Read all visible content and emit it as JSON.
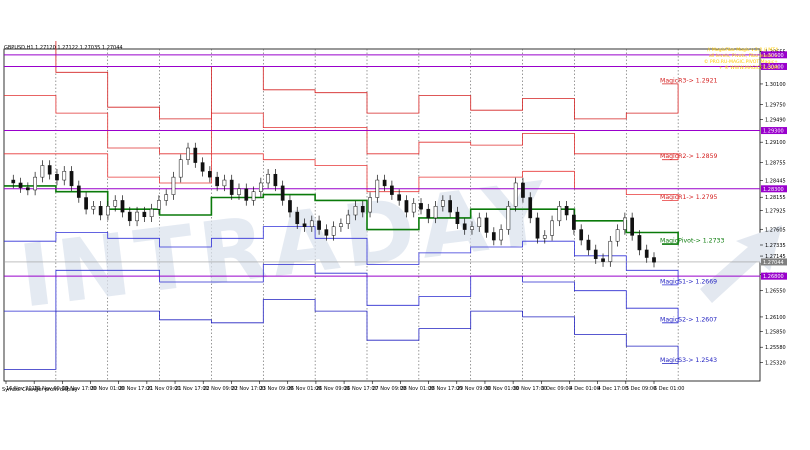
{
  "chart": {
    "symbol_line": "GBPUSD,H1  1.27120 1.27122 1.27035 1.27044",
    "status_text": "Symbol Changer profit display",
    "watermark_text": "INTRADAY",
    "info_lines": [
      "// MagicFibo Magic v.2.0 // MT4",
      "all levels, Pivots, Fibo levels +",
      "© PRO.RU-MAGIC.PIVOT Magic+",
      "+ ® WWW.MAGICFX.COM"
    ]
  },
  "pivot_labels": {
    "r3": "MagicR3-> 1.2921",
    "r2": "MagicR2-> 1.2859",
    "r1": "MagicR1-> 1.2795",
    "pivot": "MagicPivot-> 1.2733",
    "s1": "MagicS1-> 1.2669",
    "s2": "MagicS2-> 1.2607",
    "s3": "MagicS3-> 1.2543"
  },
  "chart_data": {
    "type": "line",
    "instrument": "GBPUSD",
    "timeframe": "H1",
    "ylim": [
      1.25,
      1.307
    ],
    "y_ticks": [
      "1.30655",
      "1.30379",
      "1.30100",
      "1.29750",
      "1.29490",
      "1.29100",
      "1.28755",
      "1.28445",
      "1.28155",
      "1.27925",
      "1.27605",
      "1.27335",
      "1.27145",
      "1.26825",
      "1.26550",
      "1.26100",
      "1.25850",
      "1.25580",
      "1.25320"
    ],
    "x_ticks": [
      "16 Nov 2018",
      "19 Nov 09:00",
      "19 Nov 17:00",
      "20 Nov 01:00",
      "20 Nov 17:00",
      "21 Nov 09:00",
      "21 Nov 17:00",
      "22 Nov 09:00",
      "22 Nov 17:00",
      "23 Nov 09:00",
      "26 Nov 01:00",
      "26 Nov 09:00",
      "26 Nov 17:00",
      "27 Nov 09:00",
      "28 Nov 01:00",
      "28 Nov 17:00",
      "29 Nov 09:00",
      "30 Nov 01:00",
      "30 Nov 17:00",
      "3 Dec 09:00",
      "4 Dec 01:00",
      "4 Dec 17:00",
      "5 Dec 09:00",
      "6 Dec 01:00"
    ],
    "price_tags": [
      {
        "value": "1.30600",
        "color": "#9900cc"
      },
      {
        "value": "1.30400",
        "color": "#9900cc"
      },
      {
        "value": "1.29300",
        "color": "#9900cc"
      },
      {
        "value": "1.28300",
        "color": "#9900cc"
      },
      {
        "value": "1.27044",
        "color": "#7f7f7f"
      },
      {
        "value": "1.26800",
        "color": "#9900cc"
      }
    ],
    "purple_levels": [
      1.306,
      1.304,
      1.293,
      1.283,
      1.268
    ],
    "current_price": 1.27044,
    "days": [
      {
        "label": "16 Nov",
        "r3": 1.309,
        "r2": 1.299,
        "r1": 1.289,
        "p": 1.2835,
        "s1": 1.274,
        "s2": 1.262,
        "s3": 1.252
      },
      {
        "label": "19 Nov",
        "r3": 1.303,
        "r2": 1.296,
        "r1": 1.289,
        "p": 1.2825,
        "s1": 1.2755,
        "s2": 1.269,
        "s3": 1.262
      },
      {
        "label": "20 Nov",
        "r3": 1.297,
        "r2": 1.29,
        "r1": 1.285,
        "p": 1.2795,
        "s1": 1.2745,
        "s2": 1.269,
        "s3": 1.262
      },
      {
        "label": "21 Nov",
        "r3": 1.295,
        "r2": 1.289,
        "r1": 1.284,
        "p": 1.2785,
        "s1": 1.273,
        "s2": 1.267,
        "s3": 1.2605
      },
      {
        "label": "22 Nov",
        "r3": 1.304,
        "r2": 1.296,
        "r1": 1.289,
        "p": 1.2815,
        "s1": 1.2745,
        "s2": 1.267,
        "s3": 1.26
      },
      {
        "label": "23 Nov",
        "r3": 1.3,
        "r2": 1.2935,
        "r1": 1.288,
        "p": 1.282,
        "s1": 1.2765,
        "s2": 1.27,
        "s3": 1.264
      },
      {
        "label": "26 Nov",
        "r3": 1.2995,
        "r2": 1.2935,
        "r1": 1.287,
        "p": 1.281,
        "s1": 1.2745,
        "s2": 1.2685,
        "s3": 1.262
      },
      {
        "label": "27 Nov",
        "r3": 1.296,
        "r2": 1.289,
        "r1": 1.2825,
        "p": 1.276,
        "s1": 1.27,
        "s2": 1.263,
        "s3": 1.257
      },
      {
        "label": "28 Nov",
        "r3": 1.299,
        "r2": 1.291,
        "r1": 1.285,
        "p": 1.278,
        "s1": 1.272,
        "s2": 1.2645,
        "s3": 1.259
      },
      {
        "label": "29 Nov",
        "r3": 1.2965,
        "r2": 1.2905,
        "r1": 1.285,
        "p": 1.2795,
        "s1": 1.273,
        "s2": 1.268,
        "s3": 1.262
      },
      {
        "label": "30 Nov",
        "r3": 1.2985,
        "r2": 1.2925,
        "r1": 1.286,
        "p": 1.2795,
        "s1": 1.274,
        "s2": 1.267,
        "s3": 1.261
      },
      {
        "label": "3 Dec",
        "r3": 1.295,
        "r2": 1.289,
        "r1": 1.283,
        "p": 1.2775,
        "s1": 1.2715,
        "s2": 1.2655,
        "s3": 1.258
      },
      {
        "label": "4 Dec",
        "r3": 1.296,
        "r2": 1.289,
        "r1": 1.282,
        "p": 1.2755,
        "s1": 1.269,
        "s2": 1.2625,
        "s3": 1.256
      },
      {
        "label": "5 Dec",
        "r3": 1.301,
        "r2": 1.288,
        "r1": 1.281,
        "p": 1.2735,
        "s1": 1.2665,
        "s2": 1.26,
        "s3": 1.253
      }
    ],
    "price_path": [
      1.2845,
      1.284,
      1.2832,
      1.2828,
      1.285,
      1.287,
      1.2855,
      1.2845,
      1.286,
      1.2835,
      1.2815,
      1.2795,
      1.28,
      1.2785,
      1.28,
      1.281,
      1.279,
      1.2775,
      1.279,
      1.2782,
      1.2795,
      1.281,
      1.282,
      1.285,
      1.288,
      1.29,
      1.2875,
      1.286,
      1.285,
      1.2835,
      1.2845,
      1.282,
      1.283,
      1.281,
      1.2825,
      1.284,
      1.2855,
      1.2835,
      1.281,
      1.279,
      1.277,
      1.2765,
      1.2775,
      1.276,
      1.275,
      1.2765,
      1.277,
      1.2785,
      1.28,
      1.279,
      1.2815,
      1.2845,
      1.2835,
      1.282,
      1.281,
      1.279,
      1.2805,
      1.2795,
      1.278,
      1.28,
      1.281,
      1.279,
      1.277,
      1.276,
      1.2765,
      1.278,
      1.2755,
      1.2742,
      1.276,
      1.28,
      1.284,
      1.2815,
      1.278,
      1.2745,
      1.275,
      1.2775,
      1.28,
      1.2785,
      1.276,
      1.2742,
      1.2725,
      1.271,
      1.2705,
      1.274,
      1.276,
      1.278,
      1.275,
      1.2725,
      1.2712,
      1.2704
    ]
  }
}
